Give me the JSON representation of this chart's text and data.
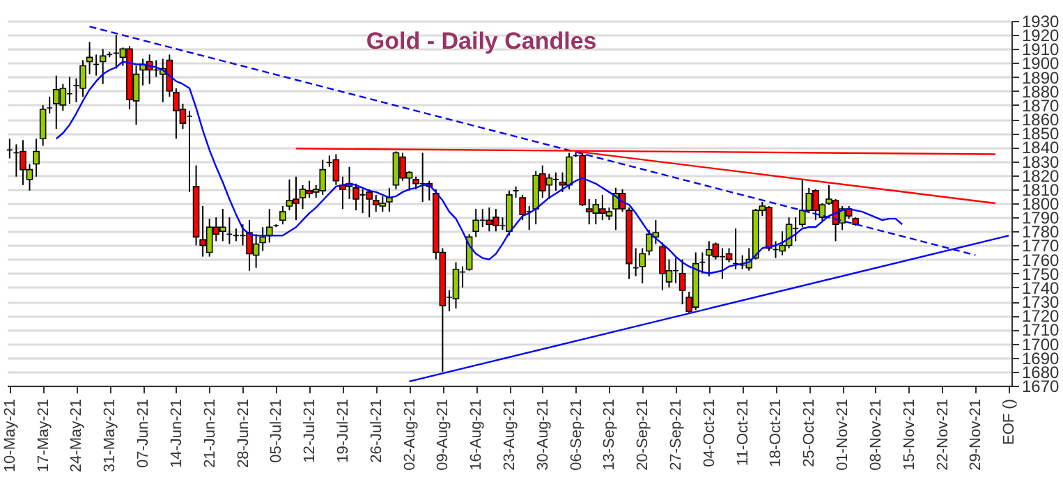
{
  "chart_data": {
    "type": "candlestick",
    "title": "Gold - Daily Candles",
    "categories": [
      "10-May-21",
      null,
      null,
      null,
      null,
      "17-May-21",
      null,
      null,
      null,
      null,
      "24-May-21",
      null,
      null,
      null,
      null,
      "31-May-21",
      null,
      null,
      null,
      null,
      "07-Jun-21",
      null,
      null,
      null,
      null,
      "14-Jun-21",
      null,
      null,
      null,
      null,
      "21-Jun-21",
      null,
      null,
      null,
      null,
      "28-Jun-21",
      null,
      null,
      null,
      null,
      "05-Jul-21",
      null,
      null,
      null,
      null,
      "12-Jul-21",
      null,
      null,
      null,
      null,
      "19-Jul-21",
      null,
      null,
      null,
      null,
      "26-Jul-21",
      null,
      null,
      null,
      null,
      "02-Aug-21",
      null,
      null,
      null,
      null,
      "09-Aug-21",
      null,
      null,
      null,
      null,
      "16-Aug-21",
      null,
      null,
      null,
      null,
      "23-Aug-21",
      null,
      null,
      null,
      null,
      "30-Aug-21",
      null,
      null,
      null,
      null,
      "06-Sep-21",
      null,
      null,
      null,
      null,
      "13-Sep-21",
      null,
      null,
      null,
      null,
      "20-Sep-21",
      null,
      null,
      null,
      null,
      "27-Sep-21",
      null,
      null,
      null,
      null,
      "04-Oct-21",
      null,
      null,
      null,
      null,
      "11-Oct-21",
      null,
      null,
      null,
      null,
      "18-Oct-21",
      null,
      null,
      null,
      null,
      "25-Oct-21",
      null,
      null,
      null,
      null,
      "01-Nov-21",
      null,
      null,
      null,
      null,
      "08-Nov-21",
      null,
      null,
      null,
      null,
      "15-Nov-21",
      null,
      null,
      null,
      null,
      "22-Nov-21",
      null,
      null,
      null,
      null,
      "29-Nov-21",
      null,
      null,
      null,
      null,
      "EOF ()"
    ],
    "colors": [
      "#000000",
      "#000000",
      "#ff0000",
      "#99cc00",
      "#99cc00",
      "#99cc00",
      "#000000",
      "#99cc00",
      "#99cc00",
      "#000000",
      "#000000",
      "#99cc00",
      "#99cc00",
      "#000000",
      "#99cc00",
      "#000000",
      "#000000",
      "#99cc00",
      "#ff0000",
      "#99cc00",
      "#99cc00",
      "#ff0000",
      "#000000",
      "#99cc00",
      "#ff0000",
      "#ff0000",
      "#ff0000",
      "#000000",
      "#ff0000",
      "#ff0000",
      "#99cc00",
      "#ff0000",
      "#99cc00",
      "#000000",
      "#000000",
      "#000000",
      "#ff0000",
      "#99cc00",
      "#99cc00",
      "#99cc00",
      "#000000",
      "#99cc00",
      "#99cc00",
      "#ff0000",
      "#99cc00",
      "#ff0000",
      "#99cc00",
      "#99cc00",
      "#000000",
      "#ff0000",
      "#ff0000",
      "#ff0000",
      "#ff0000",
      "#000000",
      "#ff0000",
      "#ff0000",
      "#99cc00",
      "#99cc00",
      "#99cc00",
      "#ff0000",
      "#99cc00",
      "#ff0000",
      "#000000",
      "#ff0000",
      "#ff0000",
      "#ff0000",
      "#000000",
      "#99cc00",
      "#000000",
      "#99cc00",
      "#99cc00",
      "#000000",
      "#ff0000",
      "#ff0000",
      "#000000",
      "#99cc00",
      "#000000",
      "#ff0000",
      "#000000",
      "#99cc00",
      "#ff0000",
      "#99cc00",
      "#000000",
      "#ff0000",
      "#99cc00",
      "#000000",
      "#ff0000",
      "#ff0000",
      "#99cc00",
      "#ff0000",
      "#99cc00",
      "#99cc00",
      "#ff0000",
      "#ff0000",
      "#000000",
      "#99cc00",
      "#99cc00",
      "#99cc00",
      "#ff0000",
      "#99cc00",
      "#000000",
      "#ff0000",
      "#ff0000",
      "#99cc00",
      "#000000",
      "#99cc00",
      "#ff0000",
      "#000000",
      "#ff0000",
      "#000000",
      "#000000",
      "#99cc00",
      "#99cc00",
      "#99cc00",
      "#ff0000",
      "#000000",
      "#99cc00",
      "#99cc00",
      "#000000",
      "#99cc00",
      "#99cc00",
      "#ff0000",
      "#99cc00",
      "#99cc00",
      "#ff0000",
      "#99cc00",
      "#ff0000",
      "#ff0000",
      null,
      null,
      null,
      null,
      null,
      null,
      null,
      null,
      null,
      null,
      null,
      null,
      null,
      null,
      null,
      null,
      null,
      null,
      null,
      null,
      null,
      null,
      null
    ],
    "ohlc": [
      [
        1838,
        1846,
        1832,
        1838
      ],
      [
        1836,
        1842,
        1819,
        1836
      ],
      [
        1837,
        1845,
        1813,
        1824
      ],
      [
        1817,
        1828,
        1809,
        1824
      ],
      [
        1828,
        1846,
        1819,
        1837
      ],
      [
        1846,
        1870,
        1841,
        1867
      ],
      [
        1868,
        1876,
        1864,
        1868
      ],
      [
        1871,
        1891,
        1853,
        1881
      ],
      [
        1870,
        1885,
        1866,
        1882
      ],
      [
        1878,
        1890,
        1871,
        1878
      ],
      [
        1884,
        1889,
        1872,
        1884
      ],
      [
        1882,
        1902,
        1876,
        1898
      ],
      [
        1901,
        1915,
        1892,
        1904
      ],
      [
        1899,
        1906,
        1891,
        1899
      ],
      [
        1901,
        1910,
        1885,
        1905
      ],
      [
        1906,
        1908,
        1904,
        1906
      ],
      [
        1907,
        1920,
        1896,
        1907
      ],
      [
        1904,
        1911,
        1898,
        1910
      ],
      [
        1910,
        1912,
        1867,
        1874
      ],
      [
        1873,
        1898,
        1856,
        1892
      ],
      [
        1895,
        1903,
        1884,
        1899
      ],
      [
        1901,
        1906,
        1885,
        1895
      ],
      [
        1895,
        1902,
        1890,
        1895
      ],
      [
        1892,
        1903,
        1872,
        1896
      ],
      [
        1902,
        1906,
        1876,
        1880
      ],
      [
        1879,
        1882,
        1846,
        1866
      ],
      [
        1867,
        1871,
        1853,
        1857
      ],
      [
        1862,
        1866,
        1808,
        1862
      ],
      [
        1812,
        1827,
        1770,
        1776
      ],
      [
        1774,
        1798,
        1762,
        1770
      ],
      [
        1765,
        1789,
        1762,
        1783
      ],
      [
        1783,
        1790,
        1773,
        1778
      ],
      [
        1780,
        1796,
        1773,
        1783
      ],
      [
        1778,
        1790,
        1771,
        1778
      ],
      [
        1777,
        1782,
        1773,
        1777
      ],
      [
        1777,
        1785,
        1770,
        1777
      ],
      [
        1779,
        1788,
        1752,
        1764
      ],
      [
        1763,
        1778,
        1754,
        1771
      ],
      [
        1772,
        1783,
        1766,
        1776
      ],
      [
        1777,
        1796,
        1772,
        1783
      ],
      [
        1784,
        1785,
        1783,
        1784
      ],
      [
        1788,
        1798,
        1785,
        1794
      ],
      [
        1798,
        1817,
        1795,
        1802
      ],
      [
        1803,
        1819,
        1788,
        1800
      ],
      [
        1804,
        1813,
        1796,
        1810
      ],
      [
        1809,
        1816,
        1804,
        1807
      ],
      [
        1808,
        1813,
        1804,
        1810
      ],
      [
        1809,
        1831,
        1806,
        1824
      ],
      [
        1829,
        1834,
        1826,
        1829
      ],
      [
        1831,
        1835,
        1813,
        1816
      ],
      [
        1813,
        1819,
        1796,
        1810
      ],
      [
        1814,
        1826,
        1803,
        1812
      ],
      [
        1811,
        1814,
        1795,
        1803
      ],
      [
        1806,
        1810,
        1793,
        1806
      ],
      [
        1808,
        1810,
        1790,
        1803
      ],
      [
        1802,
        1806,
        1794,
        1799
      ],
      [
        1798,
        1805,
        1794,
        1800
      ],
      [
        1801,
        1811,
        1794,
        1804
      ],
      [
        1813,
        1837,
        1810,
        1836
      ],
      [
        1833,
        1836,
        1816,
        1818
      ],
      [
        1818,
        1823,
        1809,
        1822
      ],
      [
        1817,
        1819,
        1810,
        1814
      ],
      [
        1814,
        1836,
        1801,
        1814
      ],
      [
        1814,
        1816,
        1802,
        1812
      ],
      [
        1807,
        1810,
        1760,
        1765
      ],
      [
        1765,
        1768,
        1680,
        1727
      ],
      [
        1733,
        1738,
        1723,
        1733
      ],
      [
        1732,
        1758,
        1725,
        1753
      ],
      [
        1751,
        1755,
        1740,
        1751
      ],
      [
        1753,
        1778,
        1752,
        1776
      ],
      [
        1780,
        1796,
        1776,
        1788
      ],
      [
        1788,
        1796,
        1783,
        1788
      ],
      [
        1788,
        1797,
        1780,
        1785
      ],
      [
        1790,
        1796,
        1780,
        1784
      ],
      [
        1784,
        1790,
        1781,
        1784
      ],
      [
        1780,
        1809,
        1777,
        1806
      ],
      [
        1809,
        1812,
        1804,
        1809
      ],
      [
        1804,
        1806,
        1788,
        1792
      ],
      [
        1794,
        1798,
        1781,
        1794
      ],
      [
        1796,
        1823,
        1785,
        1820
      ],
      [
        1821,
        1827,
        1804,
        1809
      ],
      [
        1813,
        1821,
        1803,
        1818
      ],
      [
        1817,
        1822,
        1809,
        1817
      ],
      [
        1815,
        1822,
        1808,
        1813
      ],
      [
        1813,
        1836,
        1810,
        1833
      ],
      [
        1834,
        1836,
        1833,
        1834
      ],
      [
        1834,
        1836,
        1798,
        1799
      ],
      [
        1796,
        1803,
        1785,
        1794
      ],
      [
        1793,
        1803,
        1785,
        1799
      ],
      [
        1796,
        1806,
        1788,
        1793
      ],
      [
        1791,
        1797,
        1788,
        1794
      ],
      [
        1796,
        1811,
        1781,
        1807
      ],
      [
        1807,
        1810,
        1794,
        1796
      ],
      [
        1795,
        1797,
        1746,
        1757
      ],
      [
        1754,
        1768,
        1748,
        1754
      ],
      [
        1755,
        1768,
        1743,
        1764
      ],
      [
        1766,
        1781,
        1763,
        1778
      ],
      [
        1776,
        1788,
        1771,
        1779
      ],
      [
        1769,
        1772,
        1738,
        1750
      ],
      [
        1744,
        1760,
        1740,
        1752
      ],
      [
        1752,
        1761,
        1743,
        1752
      ],
      [
        1750,
        1760,
        1728,
        1738
      ],
      [
        1733,
        1737,
        1722,
        1723
      ],
      [
        1726,
        1765,
        1724,
        1757
      ],
      [
        1758,
        1765,
        1750,
        1758
      ],
      [
        1763,
        1773,
        1748,
        1767
      ],
      [
        1771,
        1772,
        1760,
        1762
      ],
      [
        1762,
        1768,
        1746,
        1762
      ],
      [
        1764,
        1768,
        1758,
        1760
      ],
      [
        1757,
        1782,
        1753,
        1757
      ],
      [
        1756,
        1763,
        1753,
        1756
      ],
      [
        1754,
        1768,
        1752,
        1760
      ],
      [
        1761,
        1796,
        1760,
        1795
      ],
      [
        1795,
        1801,
        1791,
        1798
      ],
      [
        1797,
        1798,
        1766,
        1768
      ],
      [
        1767,
        1773,
        1761,
        1767
      ],
      [
        1766,
        1780,
        1763,
        1770
      ],
      [
        1770,
        1790,
        1768,
        1785
      ],
      [
        1782,
        1790,
        1773,
        1782
      ],
      [
        1785,
        1817,
        1783,
        1795
      ],
      [
        1795,
        1811,
        1793,
        1807
      ],
      [
        1809,
        1810,
        1788,
        1795
      ],
      [
        1790,
        1800,
        1787,
        1799
      ],
      [
        1800,
        1813,
        1799,
        1803
      ],
      [
        1802,
        1803,
        1773,
        1785
      ],
      [
        1786,
        1798,
        1781,
        1796
      ],
      [
        1796,
        1798,
        1789,
        1791
      ],
      [
        1789,
        1790,
        1784,
        1785
      ],
      null,
      null,
      null,
      null,
      null,
      null,
      null,
      null,
      null,
      null,
      null,
      null,
      null,
      null,
      null,
      null,
      null,
      null,
      null,
      null,
      null,
      null,
      null
    ],
    "series": [
      {
        "type": "line",
        "color": "#0000ff",
        "line_style": "solid",
        "values": [
          null,
          null,
          null,
          null,
          null,
          null,
          null,
          1846,
          1850,
          1856,
          1864,
          1873,
          1881,
          1887,
          1892,
          1895,
          1897,
          1901,
          1900,
          1899,
          1899,
          1898,
          1897,
          1895,
          1891,
          1887,
          1885,
          1882,
          1868,
          1852,
          1838,
          1826,
          1815,
          1803,
          1792,
          1782,
          1778,
          1777,
          1777,
          1777,
          1777,
          1777,
          1780,
          1783,
          1788,
          1793,
          1797,
          1802,
          1807,
          1812,
          1813,
          1814,
          1813,
          1811,
          1809,
          1808,
          1806,
          1804,
          1805,
          1808,
          1810,
          1811,
          1813,
          1813,
          1808,
          1802,
          1794,
          1789,
          1780,
          1770,
          1764,
          1761,
          1760,
          1764,
          1771,
          1779,
          1785,
          1791,
          1793,
          1796,
          1800,
          1804,
          1807,
          1810,
          1813,
          1816,
          1818,
          1816,
          1814,
          1811,
          1808,
          1805,
          1801,
          1799,
          1793,
          1786,
          1779,
          1775,
          1771,
          1767,
          1762,
          1758,
          1755,
          1753,
          1751,
          1750,
          1751,
          1752,
          1755,
          1756,
          1757,
          1758,
          1763,
          1768,
          1769,
          1770,
          1772,
          1775,
          1778,
          1782,
          1783,
          1783,
          1787,
          1791,
          1793,
          1795,
          1796,
          1795,
          1794,
          1792,
          1790,
          1788,
          1789,
          1789,
          1785,
          null,
          null,
          null,
          null,
          null,
          null,
          null,
          null,
          null,
          null,
          null,
          null,
          null,
          null,
          null,
          null
        ]
      },
      {
        "type": "line",
        "color": "#0000ff",
        "line_style": "dashed",
        "values": [
          null,
          null,
          null,
          null,
          null,
          null,
          null,
          null,
          null,
          null,
          null,
          null,
          1926,
          null,
          null,
          null,
          null,
          null,
          null,
          null,
          null,
          null,
          null,
          null,
          null,
          null,
          null,
          null,
          null,
          null,
          null,
          null,
          null,
          null,
          null,
          null,
          null,
          null,
          null,
          null,
          null,
          null,
          null,
          null,
          null,
          null,
          null,
          null,
          null,
          null,
          null,
          null,
          null,
          null,
          null,
          null,
          null,
          null,
          null,
          null,
          null,
          null,
          null,
          null,
          null,
          null,
          null,
          null,
          null,
          null,
          null,
          null,
          null,
          null,
          null,
          null,
          null,
          null,
          null,
          null,
          null,
          null,
          null,
          null,
          null,
          null,
          null,
          null,
          null,
          null,
          null,
          null,
          null,
          null,
          null,
          null,
          null,
          null,
          null,
          null,
          null,
          null,
          null,
          null,
          null,
          null,
          null,
          null,
          null,
          null,
          null,
          null,
          null,
          null,
          null,
          null,
          null,
          null,
          null,
          null,
          null,
          null,
          null,
          null,
          null,
          null,
          null,
          null,
          null,
          null,
          null,
          null,
          null,
          null,
          null,
          null,
          null,
          null,
          null,
          null,
          null,
          null,
          null,
          null,
          null,
          1763,
          null,
          null,
          null,
          null,
          null
        ]
      },
      {
        "type": "line",
        "color": "#ff0000",
        "line_style": "solid",
        "values": [
          null,
          null,
          null,
          null,
          null,
          null,
          null,
          null,
          null,
          null,
          null,
          null,
          null,
          null,
          null,
          null,
          null,
          null,
          null,
          null,
          null,
          null,
          null,
          null,
          null,
          null,
          null,
          null,
          null,
          null,
          null,
          null,
          null,
          null,
          null,
          null,
          null,
          null,
          null,
          null,
          null,
          null,
          null,
          1839,
          null,
          null,
          null,
          null,
          null,
          null,
          null,
          null,
          null,
          null,
          null,
          null,
          null,
          null,
          null,
          null,
          null,
          null,
          null,
          null,
          null,
          null,
          null,
          null,
          null,
          null,
          null,
          null,
          null,
          null,
          null,
          null,
          null,
          null,
          null,
          null,
          null,
          null,
          null,
          null,
          null,
          null,
          null,
          null,
          null,
          null,
          null,
          null,
          null,
          null,
          null,
          null,
          null,
          null,
          null,
          null,
          null,
          null,
          null,
          null,
          null,
          null,
          null,
          null,
          null,
          null,
          null,
          null,
          null,
          null,
          null,
          null,
          null,
          null,
          null,
          null,
          null,
          null,
          null,
          null,
          null,
          null,
          null,
          null,
          null,
          null,
          null,
          null,
          null,
          null,
          null,
          null,
          null,
          null,
          null,
          null,
          null,
          null,
          null,
          null,
          null,
          null,
          null,
          null,
          1835,
          null,
          null
        ]
      },
      {
        "type": "line",
        "color": "#ff0000",
        "line_style": "solid",
        "values": [
          null,
          null,
          null,
          null,
          null,
          null,
          null,
          null,
          null,
          null,
          null,
          null,
          null,
          null,
          null,
          null,
          null,
          null,
          null,
          null,
          null,
          null,
          null,
          null,
          null,
          null,
          null,
          null,
          null,
          null,
          null,
          null,
          null,
          null,
          null,
          null,
          null,
          null,
          null,
          null,
          null,
          null,
          null,
          null,
          null,
          null,
          null,
          null,
          null,
          null,
          null,
          null,
          null,
          null,
          null,
          null,
          null,
          null,
          null,
          null,
          null,
          null,
          null,
          null,
          null,
          null,
          null,
          null,
          null,
          null,
          null,
          null,
          null,
          null,
          null,
          null,
          null,
          null,
          null,
          null,
          null,
          null,
          null,
          null,
          null,
          1837,
          null,
          null,
          null,
          null,
          null,
          null,
          null,
          null,
          null,
          null,
          null,
          null,
          null,
          null,
          null,
          null,
          null,
          null,
          null,
          null,
          null,
          null,
          null,
          null,
          null,
          null,
          null,
          null,
          null,
          null,
          null,
          null,
          null,
          null,
          null,
          null,
          null,
          null,
          null,
          null,
          null,
          null,
          null,
          null,
          null,
          null,
          null,
          null,
          null,
          null,
          null,
          null,
          null,
          null,
          null,
          null,
          null,
          null,
          null,
          null,
          null,
          null,
          1800,
          null,
          null
        ]
      },
      {
        "type": "line",
        "color": "#0000ff",
        "line_style": "solid",
        "values": [
          null,
          null,
          null,
          null,
          null,
          null,
          null,
          null,
          null,
          null,
          null,
          null,
          null,
          null,
          null,
          null,
          null,
          null,
          null,
          null,
          null,
          null,
          null,
          null,
          null,
          null,
          null,
          null,
          null,
          null,
          null,
          null,
          null,
          null,
          null,
          null,
          null,
          null,
          null,
          null,
          null,
          null,
          null,
          null,
          null,
          null,
          null,
          null,
          null,
          null,
          null,
          null,
          null,
          null,
          null,
          null,
          null,
          null,
          null,
          null,
          1673,
          null,
          null,
          null,
          null,
          null,
          null,
          null,
          null,
          null,
          null,
          null,
          null,
          null,
          null,
          null,
          null,
          null,
          null,
          null,
          null,
          null,
          null,
          null,
          null,
          null,
          null,
          null,
          null,
          null,
          null,
          null,
          null,
          null,
          null,
          null,
          null,
          null,
          null,
          null,
          null,
          null,
          null,
          null,
          null,
          null,
          null,
          null,
          null,
          null,
          null,
          null,
          null,
          null,
          null,
          null,
          null,
          null,
          null,
          null,
          null,
          null,
          null,
          null,
          null,
          null,
          null,
          null,
          null,
          null,
          null,
          null,
          null,
          null,
          null,
          null,
          null,
          null,
          null,
          null,
          null,
          null,
          null,
          null,
          null,
          null,
          null,
          null,
          null,
          null,
          1777
        ]
      }
    ],
    "ylim": [
      1670,
      1930
    ],
    "yticks": [
      1670,
      1680,
      1690,
      1700,
      1710,
      1720,
      1730,
      1740,
      1750,
      1760,
      1770,
      1780,
      1790,
      1800,
      1810,
      1820,
      1830,
      1840,
      1850,
      1860,
      1870,
      1880,
      1890,
      1900,
      1910,
      1920,
      1930
    ],
    "grid": "y"
  }
}
